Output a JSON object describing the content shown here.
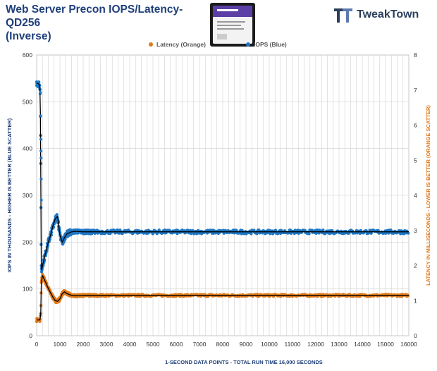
{
  "header": {
    "title_line1": "Web Server Precon IOPS/Latency- QD256",
    "title_line2": "(Inverse)",
    "brand": "TweakTown"
  },
  "colors": {
    "iops": "#1f77c4",
    "latency": "#e07a1a",
    "trend": "#000000",
    "title": "#1f3f7a",
    "axis_label": "#1f3f7a",
    "grid": "#d0d0d0"
  },
  "chart_data": {
    "type": "scatter",
    "title": "Web Server Precon IOPS/Latency- QD256 (Inverse)",
    "xlabel": "1-SECOND  DATA POINTS - TOTAL RUN TIME 16,000 SECONDS",
    "ylabel_left": "IOPS IN THOUSANDS - HIGHER IS BETTER (BLUE SCATTER)",
    "ylabel_right": "LATENCY IN MILLISECONDS - LOWER IS BETTER (ORANGE SCATTER)",
    "xlim": [
      0,
      16000
    ],
    "ylim_left": [
      0,
      600
    ],
    "ylim_right": [
      0,
      8
    ],
    "x_ticks": [
      0,
      1000,
      2000,
      3000,
      4000,
      5000,
      6000,
      7000,
      8000,
      9000,
      10000,
      11000,
      12000,
      13000,
      14000,
      15000,
      16000
    ],
    "y_left_ticks": [
      0,
      100,
      200,
      300,
      400,
      500,
      600
    ],
    "y_right_ticks": [
      0,
      1,
      2,
      3,
      4,
      5,
      6,
      7,
      8
    ],
    "grid": true,
    "legend_position": "top",
    "series": [
      {
        "name": "Latency (Orange)",
        "axis": "right",
        "color": "#e07a1a",
        "x": [
          0,
          100,
          150,
          180,
          200,
          250,
          300,
          400,
          500,
          600,
          700,
          800,
          900,
          1000,
          1100,
          1200,
          1300,
          1500,
          1700,
          2000,
          2500,
          4000,
          6000,
          8000,
          10000,
          12000,
          14000,
          16000
        ],
        "y": [
          0.45,
          0.45,
          0.45,
          0.7,
          1.5,
          1.72,
          1.65,
          1.5,
          1.35,
          1.22,
          1.1,
          1.0,
          0.98,
          1.05,
          1.2,
          1.25,
          1.2,
          1.15,
          1.14,
          1.15,
          1.15,
          1.15,
          1.15,
          1.15,
          1.15,
          1.15,
          1.15,
          1.15
        ],
        "spread": 0.03
      },
      {
        "name": "IOPS (Blue)",
        "axis": "left",
        "color": "#1f77c4",
        "x": [
          0,
          100,
          150,
          170,
          180,
          190,
          200,
          220,
          250,
          300,
          400,
          500,
          600,
          700,
          800,
          900,
          1000,
          1100,
          1200,
          1300,
          1500,
          1700,
          2000,
          2500,
          4000,
          6000,
          8000,
          10000,
          12000,
          14000,
          16000
        ],
        "y": [
          540,
          538,
          530,
          420,
          330,
          200,
          145,
          140,
          150,
          160,
          180,
          200,
          215,
          235,
          250,
          255,
          215,
          200,
          210,
          218,
          222,
          223,
          222,
          222,
          222,
          222,
          222,
          222,
          222,
          222,
          222
        ],
        "spread": 4
      }
    ]
  }
}
